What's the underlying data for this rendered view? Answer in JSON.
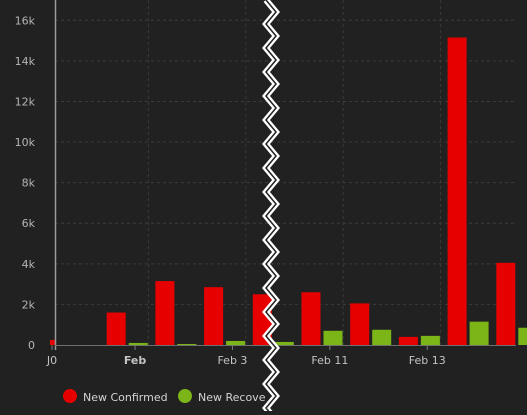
{
  "chart_data": {
    "type": "bar",
    "ylim": [
      0,
      17000
    ],
    "y_ticks": [
      0,
      2000,
      4000,
      6000,
      8000,
      10000,
      12000,
      14000,
      16000
    ],
    "y_tick_labels": [
      "0",
      "2k",
      "4k",
      "6k",
      "8k",
      "10k",
      "12k",
      "14k",
      "16k"
    ],
    "grid": true,
    "axis_break": true,
    "x_tick_labels": [
      {
        "text": "J0",
        "bold": false,
        "slot": 0
      },
      {
        "text": "Feb",
        "bold": true,
        "slot": 1.5
      },
      {
        "text": "Feb 3",
        "bold": false,
        "slot": 3.5
      },
      {
        "text": "Feb 11",
        "bold": false,
        "slot": 5.5
      },
      {
        "text": "Feb 13",
        "bold": false,
        "slot": 7.5
      }
    ],
    "series": [
      {
        "name": "New Confirmed",
        "color": "#e60000",
        "values": [
          250,
          1600,
          3150,
          2850,
          2500,
          2600,
          2050,
          400,
          15150,
          4050
        ]
      },
      {
        "name": "New Recovered",
        "color": "#7cb518",
        "values": [
          0,
          100,
          50,
          200,
          150,
          700,
          750,
          450,
          1150,
          850
        ]
      }
    ],
    "legend": {
      "position": "bottom-left",
      "entries": [
        "New Confirmed",
        "New Recove"
      ],
      "colors": [
        "#e60000",
        "#7cb518"
      ]
    }
  }
}
